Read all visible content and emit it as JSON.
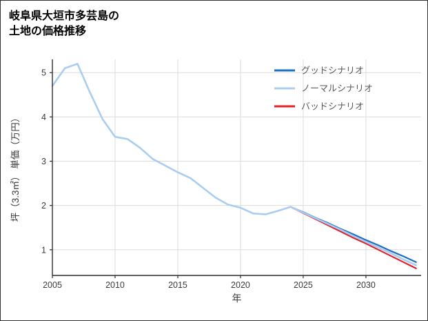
{
  "title": {
    "line1": "岐阜県大垣市多芸島の",
    "line2": "土地の価格推移"
  },
  "chart_data": {
    "type": "line",
    "title": "岐阜県大垣市多芸島の 土地の価格推移",
    "xlabel": "年",
    "ylabel": "坪（3.3㎡） 単価（万円）",
    "xlim": [
      2005,
      2034.4
    ],
    "ylim": [
      0.42,
      5.3
    ],
    "x_ticks": [
      2005,
      2010,
      2015,
      2020,
      2025,
      2030
    ],
    "y_ticks": [
      1,
      2,
      3,
      4,
      5
    ],
    "grid": true,
    "legend_position": "upper right",
    "colors": {
      "grid": "#dcdcdc",
      "axis": "#2b2b2b",
      "tick_label": "#3a3a3a",
      "legend_text": "#595959",
      "background": "#ffffff"
    },
    "series": [
      {
        "key": "good",
        "name": "グッドシナリオ",
        "color": "#1b6ec2",
        "width": 2.2,
        "zorder": 2,
        "x": [
          2024,
          2025,
          2026,
          2027,
          2028,
          2029,
          2030,
          2031,
          2032,
          2033,
          2034
        ],
        "y": [
          1.97,
          1.85,
          1.72,
          1.6,
          1.47,
          1.35,
          1.22,
          1.1,
          0.97,
          0.85,
          0.72
        ]
      },
      {
        "key": "normal",
        "name": "ノーマルシナリオ",
        "color": "#a9cdf0",
        "width": 2.6,
        "zorder": 3,
        "x": [
          2005,
          2006,
          2007,
          2008,
          2009,
          2010,
          2011,
          2012,
          2013,
          2014,
          2015,
          2016,
          2017,
          2018,
          2019,
          2020,
          2021,
          2022,
          2023,
          2024,
          2025,
          2026,
          2027,
          2028,
          2029,
          2030,
          2031,
          2032,
          2033,
          2034
        ],
        "y": [
          4.7,
          5.1,
          5.2,
          4.55,
          3.95,
          3.55,
          3.5,
          3.3,
          3.05,
          2.9,
          2.75,
          2.62,
          2.4,
          2.18,
          2.02,
          1.95,
          1.82,
          1.8,
          1.88,
          1.97,
          1.84,
          1.71,
          1.58,
          1.45,
          1.31,
          1.18,
          1.05,
          0.92,
          0.78,
          0.65
        ]
      },
      {
        "key": "bad",
        "name": "バッドシナリオ",
        "color": "#e02128",
        "width": 2.2,
        "zorder": 1,
        "x": [
          2024,
          2025,
          2026,
          2027,
          2028,
          2029,
          2030,
          2031,
          2032,
          2033,
          2034
        ],
        "y": [
          1.97,
          1.83,
          1.69,
          1.55,
          1.41,
          1.27,
          1.14,
          1.0,
          0.86,
          0.72,
          0.58
        ]
      }
    ]
  }
}
